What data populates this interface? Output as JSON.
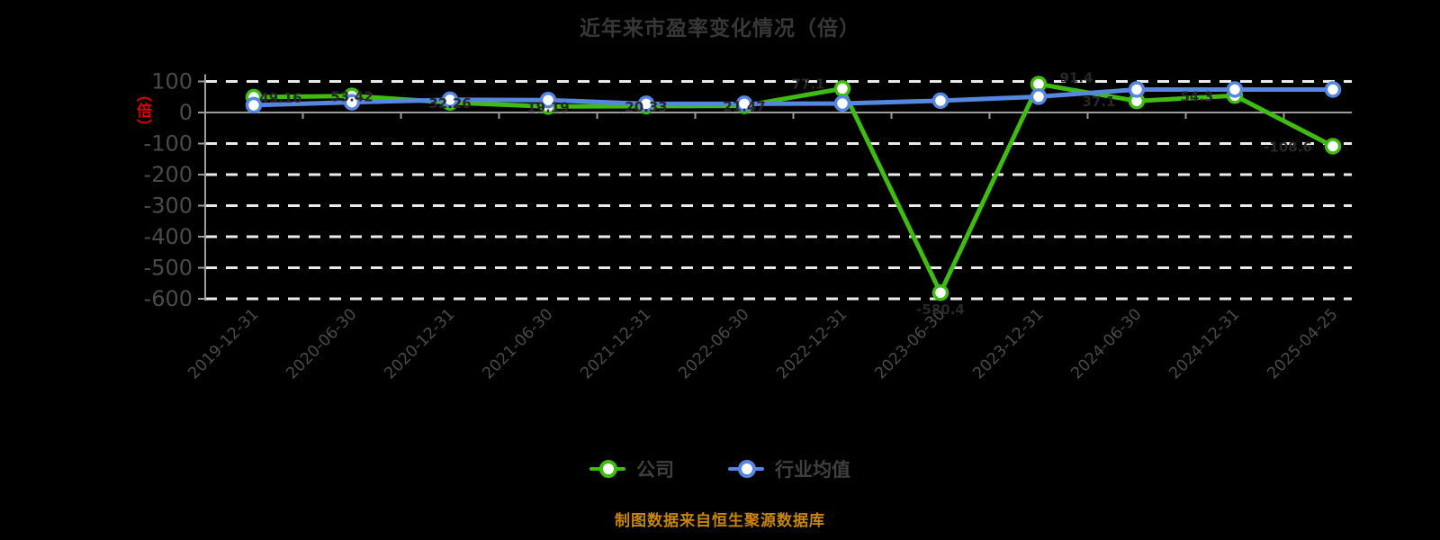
{
  "title": "近年来市盈率变化情况（倍）",
  "y_axis_unit": "（倍）",
  "footer": "制图数据来自恒生聚源数据库",
  "colors": {
    "background": "#000000",
    "title_text": "#373737",
    "axis_line": "#9c9c9c",
    "gridline": "#ebebeb",
    "tick_label": "#4a4a4a",
    "unit_label": "#e00000",
    "data_label": "#272727",
    "footer_text": "#c8860e",
    "company_green": "#3fbb12",
    "industry_blue": "#5586e0"
  },
  "legend": {
    "items": [
      {
        "label": "公司",
        "color": "#3fbb12"
      },
      {
        "label": "行业均值",
        "color": "#5586e0"
      }
    ],
    "position": "bottom-center"
  },
  "chart_data": {
    "type": "line",
    "title": "近年来市盈率变化情况（倍）",
    "xlabel": "",
    "ylabel": "（倍）",
    "ylim": [
      -600,
      100
    ],
    "yticks": [
      100,
      0,
      -100,
      -200,
      -300,
      -400,
      -500,
      -600
    ],
    "grid": "horizontal dashed",
    "legend_position": "bottom",
    "categories": [
      "2019-12-31",
      "2020-06-30",
      "2020-12-31",
      "2021-06-30",
      "2021-12-31",
      "2022-06-30",
      "2022-12-31",
      "2023-06-30",
      "2023-12-31",
      "2024-06-30",
      "2024-12-31",
      "2025-04-25"
    ],
    "series": [
      {
        "name": "公司",
        "color": "#3fbb12",
        "values": [
          49.16,
          53.42,
          32.26,
          19.19,
          20.33,
          21.47,
          77.1,
          -580.4,
          91.4,
          37.1,
          54.3,
          -108.6
        ],
        "point_labels": [
          "49.16",
          "53.42",
          "32.26",
          "19.19",
          "20.33",
          "21.47",
          "77.1",
          "-580.4",
          "91.4",
          "37.1",
          "54.3",
          "-108.6"
        ]
      },
      {
        "name": "行业均值",
        "color": "#5586e0",
        "values": [
          23.5,
          33,
          41,
          40,
          28,
          28,
          29,
          38,
          51,
          74,
          74,
          74
        ],
        "point_labels": []
      }
    ]
  }
}
